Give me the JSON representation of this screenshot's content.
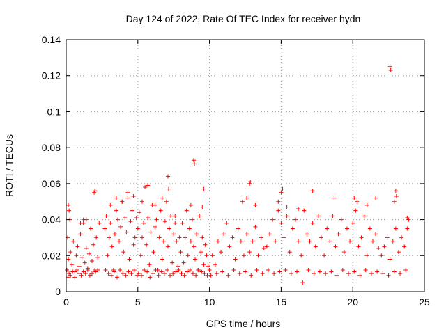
{
  "chart_data": {
    "type": "scatter",
    "title": "Day 124 of 2022, Rate Of TEC Index for receiver hydn",
    "xlabel": "GPS time / hours",
    "ylabel": "ROTI / TECUs",
    "xlim": [
      0,
      25
    ],
    "ylim": [
      0,
      0.14
    ],
    "xticks": [
      0,
      5,
      10,
      15,
      20,
      25
    ],
    "xtick_labels": [
      "0",
      "5",
      "10",
      "15",
      "20",
      "25"
    ],
    "yticks": [
      0,
      0.02,
      0.04,
      0.06,
      0.08,
      0.1,
      0.12,
      0.14
    ],
    "ytick_labels": [
      "0",
      "0.02",
      "0.04",
      "0.06",
      "0.08",
      "0.1",
      "0.12",
      "0.14"
    ],
    "grid": true,
    "marker": "plus",
    "series": [
      {
        "name": "ROTI",
        "color": "#ff0000",
        "x": [
          0.05,
          0.1,
          0.15,
          0.2,
          0.3,
          0.4,
          0.5,
          0.6,
          0.7,
          0.8,
          0.9,
          1.0,
          1.1,
          1.2,
          1.3,
          1.4,
          1.5,
          1.6,
          1.7,
          1.8,
          1.9,
          2.0,
          2.1,
          2.2,
          2.3,
          0.12,
          0.2,
          0.3,
          0.45,
          0.6,
          0.75,
          0.9,
          1.05,
          1.2,
          1.35,
          1.5,
          1.65,
          1.8,
          2.05,
          2.2,
          0.15,
          0.25,
          1.0,
          1.2,
          1.4,
          1.95,
          2.0,
          2.7,
          2.8,
          2.9,
          3.0,
          3.1,
          3.2,
          3.3,
          3.4,
          3.5,
          3.6,
          3.7,
          3.8,
          3.9,
          4.0,
          4.1,
          4.2,
          4.3,
          4.4,
          4.5,
          4.6,
          4.7,
          4.8,
          4.9,
          2.75,
          2.95,
          3.15,
          3.35,
          3.55,
          3.75,
          3.95,
          4.15,
          4.35,
          4.55,
          4.75,
          4.95,
          3.1,
          3.5,
          3.9,
          4.3,
          4.7,
          5.0,
          5.1,
          5.2,
          5.3,
          5.4,
          5.5,
          5.6,
          5.7,
          5.8,
          5.9,
          6.0,
          6.1,
          6.2,
          6.3,
          6.4,
          6.5,
          6.6,
          6.7,
          6.8,
          6.9,
          7.0,
          7.1,
          7.2,
          7.3,
          7.4,
          7.5,
          7.6,
          7.7,
          7.8,
          7.9,
          5.05,
          5.25,
          5.45,
          5.65,
          5.85,
          6.05,
          6.25,
          6.45,
          6.65,
          6.85,
          7.05,
          7.25,
          7.45,
          7.65,
          7.85,
          5.3,
          5.7,
          6.2,
          6.7,
          7.1,
          7.15,
          7.6,
          8.0,
          8.1,
          8.2,
          8.3,
          8.4,
          8.5,
          8.6,
          8.7,
          8.8,
          8.9,
          9.0,
          9.1,
          9.2,
          9.3,
          9.4,
          9.5,
          9.6,
          9.7,
          9.8,
          9.9,
          8.05,
          8.25,
          8.45,
          8.65,
          8.85,
          9.05,
          9.25,
          9.45,
          9.65,
          9.85,
          8.7,
          8.9,
          8.95,
          9.5,
          9.6,
          10.0,
          10.2,
          10.4,
          10.6,
          10.8,
          11.0,
          11.2,
          11.4,
          11.6,
          11.8,
          12.0,
          12.2,
          12.4,
          12.6,
          12.8,
          13.0,
          13.2,
          13.4,
          13.6,
          13.8,
          10.1,
          10.5,
          10.9,
          11.3,
          11.7,
          12.1,
          12.5,
          12.9,
          13.3,
          13.7,
          12.3,
          12.6,
          12.8,
          12.85,
          13.2,
          14.0,
          14.2,
          14.4,
          14.6,
          14.8,
          15.0,
          15.2,
          15.4,
          15.6,
          15.8,
          16.0,
          16.2,
          16.4,
          16.6,
          16.8,
          17.0,
          17.2,
          17.4,
          17.6,
          17.8,
          14.1,
          14.5,
          14.9,
          15.3,
          15.7,
          16.1,
          16.5,
          16.9,
          17.3,
          17.7,
          14.8,
          15.0,
          15.1,
          15.4,
          16.2,
          17.2,
          18.0,
          18.2,
          18.4,
          18.6,
          18.8,
          19.0,
          19.2,
          19.4,
          19.6,
          19.8,
          20.0,
          20.2,
          20.4,
          20.6,
          20.8,
          21.0,
          21.2,
          21.4,
          21.6,
          21.8,
          18.1,
          18.5,
          18.9,
          19.3,
          19.7,
          20.1,
          20.5,
          20.9,
          21.3,
          21.7,
          18.7,
          20.1,
          20.3,
          21.0,
          21.6,
          22.0,
          22.2,
          22.4,
          22.6,
          22.8,
          23.0,
          23.2,
          23.4,
          23.6,
          23.8,
          23.9,
          22.1,
          22.5,
          22.9,
          23.3,
          23.7,
          22.6,
          22.65,
          22.9,
          23.0,
          23.05,
          23.8
        ],
        "y": [
          0.012,
          0.03,
          0.018,
          0.045,
          0.022,
          0.015,
          0.028,
          0.011,
          0.02,
          0.025,
          0.014,
          0.032,
          0.019,
          0.038,
          0.016,
          0.024,
          0.013,
          0.021,
          0.035,
          0.017,
          0.026,
          0.012,
          0.03,
          0.019,
          0.038,
          0.008,
          0.01,
          0.009,
          0.011,
          0.008,
          0.012,
          0.01,
          0.009,
          0.011,
          0.01,
          0.012,
          0.009,
          0.01,
          0.011,
          0.012,
          0.048,
          0.04,
          0.038,
          0.04,
          0.04,
          0.055,
          0.056,
          0.035,
          0.042,
          0.02,
          0.03,
          0.038,
          0.025,
          0.012,
          0.032,
          0.045,
          0.04,
          0.028,
          0.036,
          0.05,
          0.022,
          0.041,
          0.033,
          0.052,
          0.018,
          0.039,
          0.045,
          0.026,
          0.03,
          0.041,
          0.012,
          0.01,
          0.009,
          0.011,
          0.008,
          0.012,
          0.01,
          0.009,
          0.011,
          0.01,
          0.012,
          0.009,
          0.048,
          0.052,
          0.05,
          0.055,
          0.053,
          0.035,
          0.044,
          0.02,
          0.03,
          0.038,
          0.058,
          0.026,
          0.041,
          0.015,
          0.033,
          0.048,
          0.022,
          0.036,
          0.04,
          0.012,
          0.03,
          0.045,
          0.018,
          0.028,
          0.039,
          0.05,
          0.025,
          0.035,
          0.042,
          0.016,
          0.032,
          0.038,
          0.028,
          0.014,
          0.03,
          0.01,
          0.009,
          0.012,
          0.011,
          0.008,
          0.01,
          0.012,
          0.009,
          0.011,
          0.01,
          0.012,
          0.009,
          0.01,
          0.011,
          0.012,
          0.05,
          0.059,
          0.048,
          0.052,
          0.064,
          0.057,
          0.042,
          0.022,
          0.038,
          0.016,
          0.03,
          0.045,
          0.02,
          0.035,
          0.028,
          0.04,
          0.025,
          0.018,
          0.032,
          0.012,
          0.042,
          0.022,
          0.03,
          0.015,
          0.026,
          0.02,
          0.014,
          0.01,
          0.009,
          0.011,
          0.012,
          0.01,
          0.009,
          0.012,
          0.011,
          0.01,
          0.009,
          0.048,
          0.073,
          0.071,
          0.047,
          0.057,
          0.012,
          0.02,
          0.015,
          0.028,
          0.022,
          0.032,
          0.038,
          0.025,
          0.03,
          0.018,
          0.035,
          0.028,
          0.02,
          0.032,
          0.022,
          0.028,
          0.036,
          0.02,
          0.03,
          0.024,
          0.009,
          0.01,
          0.011,
          0.009,
          0.012,
          0.01,
          0.011,
          0.009,
          0.012,
          0.01,
          0.05,
          0.052,
          0.06,
          0.061,
          0.048,
          0.025,
          0.032,
          0.04,
          0.028,
          0.045,
          0.038,
          0.03,
          0.042,
          0.022,
          0.035,
          0.04,
          0.028,
          0.02,
          0.045,
          0.032,
          0.028,
          0.038,
          0.025,
          0.042,
          0.03,
          0.012,
          0.01,
          0.011,
          0.012,
          0.01,
          0.011,
          0.005,
          0.012,
          0.01,
          0.011,
          0.05,
          0.055,
          0.057,
          0.047,
          0.046,
          0.056,
          0.02,
          0.035,
          0.028,
          0.042,
          0.025,
          0.032,
          0.04,
          0.022,
          0.035,
          0.028,
          0.038,
          0.045,
          0.025,
          0.03,
          0.042,
          0.02,
          0.035,
          0.028,
          0.032,
          0.024,
          0.01,
          0.011,
          0.009,
          0.012,
          0.01,
          0.011,
          0.009,
          0.012,
          0.01,
          0.011,
          0.052,
          0.052,
          0.05,
          0.048,
          0.052,
          0.02,
          0.025,
          0.03,
          0.018,
          0.028,
          0.035,
          0.022,
          0.03,
          0.025,
          0.035,
          0.04,
          0.01,
          0.009,
          0.011,
          0.01,
          0.012,
          0.125,
          0.123,
          0.05,
          0.056,
          0.053,
          0.041
        ]
      }
    ]
  }
}
